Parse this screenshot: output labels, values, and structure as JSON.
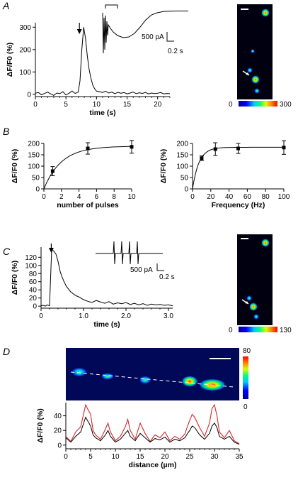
{
  "panel_labels": {
    "a": "A",
    "b": "B",
    "c": "C",
    "d": "D"
  },
  "colorbars": {
    "a": {
      "min": "0",
      "max": "300"
    },
    "c": {
      "min": "0",
      "max": "130"
    },
    "d": {
      "min": "0",
      "max": "80"
    }
  },
  "insets": {
    "a": {
      "current": "500 pA",
      "time": "0.2 s"
    },
    "c": {
      "current": "500 pA",
      "time": "0.2 s"
    }
  },
  "chart_data": [
    {
      "id": "A",
      "type": "line",
      "title": "",
      "xlabel": "time (s)",
      "ylabel": "ΔF/F0 (%)",
      "xlim": [
        0,
        22
      ],
      "ylim": [
        -10,
        320
      ],
      "xticks": [
        0,
        5,
        10,
        15,
        20
      ],
      "yticks": [
        0,
        100,
        200,
        300
      ],
      "x": [
        0,
        0.5,
        1,
        1.5,
        2,
        2.5,
        3,
        3.5,
        4,
        4.5,
        5,
        5.5,
        6,
        6.5,
        7,
        7.3,
        7.6,
        7.9,
        8.2,
        8.5,
        8.8,
        9.1,
        9.4,
        9.7,
        10,
        10.5,
        11,
        11.5,
        12,
        12.5,
        13,
        13.5,
        14,
        14.5,
        15,
        15.5,
        16,
        16.5,
        17,
        17.5,
        18,
        18.5,
        19,
        19.5,
        20,
        20.5,
        21,
        21.5,
        22
      ],
      "values": [
        5,
        8,
        -2,
        4,
        10,
        2,
        -5,
        6,
        3,
        12,
        -3,
        5,
        15,
        4,
        10,
        60,
        200,
        300,
        250,
        170,
        110,
        70,
        40,
        25,
        14,
        12,
        8,
        14,
        6,
        10,
        3,
        9,
        5,
        8,
        2,
        6,
        10,
        3,
        7,
        4,
        9,
        2,
        6,
        3,
        5,
        8,
        2,
        4,
        3
      ],
      "annotations": [
        "arrow at stimulus (~7 s)"
      ]
    },
    {
      "id": "B-left",
      "type": "scatter",
      "xlabel": "number of pulses",
      "ylabel": "ΔF/F0 (%)",
      "xlim": [
        0,
        10
      ],
      "ylim": [
        0,
        200
      ],
      "xticks": [
        0,
        2,
        4,
        6,
        8,
        10
      ],
      "yticks": [
        0,
        50,
        100,
        150,
        200
      ],
      "x": [
        1,
        5,
        10
      ],
      "values": [
        78,
        178,
        185
      ],
      "errors": [
        20,
        25,
        28
      ],
      "fit": "saturating exponential"
    },
    {
      "id": "B-right",
      "type": "scatter",
      "xlabel": "Frequency (Hz)",
      "ylabel": "ΔF/F0 (%)",
      "xlim": [
        0,
        100
      ],
      "ylim": [
        0,
        200
      ],
      "xticks": [
        0,
        20,
        40,
        60,
        80,
        100
      ],
      "yticks": [
        0,
        50,
        100,
        150,
        200
      ],
      "x": [
        10,
        25,
        50,
        100
      ],
      "values": [
        135,
        175,
        178,
        182
      ],
      "errors": [
        10,
        28,
        22,
        30
      ],
      "fit": "saturating exponential"
    },
    {
      "id": "C",
      "type": "line",
      "xlabel": "time (s)",
      "ylabel": "ΔF/F0 (%)",
      "xlim": [
        0,
        3.1
      ],
      "ylim": [
        -5,
        145
      ],
      "xticks": [
        0,
        1.0,
        2.0,
        3.0
      ],
      "yticks": [
        0,
        20,
        40,
        60,
        80,
        100,
        120
      ],
      "x": [
        0,
        0.05,
        0.1,
        0.15,
        0.2,
        0.25,
        0.3,
        0.35,
        0.4,
        0.45,
        0.5,
        0.55,
        0.6,
        0.7,
        0.8,
        0.9,
        1.0,
        1.1,
        1.2,
        1.3,
        1.4,
        1.5,
        1.6,
        1.7,
        1.8,
        1.9,
        2.0,
        2.1,
        2.2,
        2.3,
        2.4,
        2.5,
        2.6,
        2.7,
        2.8,
        2.9,
        3.0,
        3.1
      ],
      "values": [
        1,
        2,
        0,
        3,
        1,
        140,
        135,
        128,
        110,
        85,
        70,
        58,
        48,
        35,
        27,
        22,
        16,
        12,
        9,
        14,
        10,
        7,
        11,
        5,
        8,
        6,
        9,
        4,
        7,
        3,
        6,
        2,
        5,
        3,
        4,
        2,
        3,
        1
      ],
      "annotations": [
        "arrow at stimulus (~0.2 s)"
      ]
    },
    {
      "id": "D",
      "type": "line",
      "xlabel": "distance (µm)",
      "ylabel": "ΔF/F0 (%)",
      "xlim": [
        0,
        35
      ],
      "ylim": [
        -5,
        58
      ],
      "xticks": [
        0,
        5,
        10,
        15,
        20,
        25,
        30,
        35
      ],
      "yticks": [
        0,
        20,
        40
      ],
      "series": [
        {
          "color": "#d62728",
          "x": [
            0,
            1,
            2,
            3,
            3.5,
            4,
            4.5,
            5,
            5.5,
            6,
            7,
            8,
            8.5,
            9,
            10,
            11,
            12,
            12.5,
            13,
            14,
            15,
            16,
            17,
            18,
            19,
            20,
            21,
            22,
            23,
            24,
            25,
            25.5,
            26,
            27,
            28,
            29,
            29.5,
            30,
            30.5,
            31,
            32,
            33,
            34,
            35
          ],
          "values": [
            12,
            5,
            18,
            25,
            40,
            55,
            48,
            42,
            20,
            14,
            8,
            22,
            30,
            18,
            6,
            12,
            25,
            35,
            20,
            8,
            30,
            16,
            5,
            14,
            10,
            18,
            6,
            12,
            8,
            15,
            34,
            42,
            38,
            24,
            12,
            30,
            50,
            55,
            40,
            18,
            10,
            20,
            6,
            2
          ]
        },
        {
          "color": "#000000",
          "x": [
            0,
            1,
            2,
            3,
            3.5,
            4,
            4.5,
            5,
            5.5,
            6,
            7,
            8,
            8.5,
            9,
            10,
            11,
            12,
            12.5,
            13,
            14,
            15,
            16,
            17,
            18,
            19,
            20,
            21,
            22,
            23,
            24,
            25,
            25.5,
            26,
            27,
            28,
            29,
            29.5,
            30,
            30.5,
            31,
            32,
            33,
            34,
            35
          ],
          "values": [
            10,
            4,
            12,
            18,
            28,
            38,
            32,
            26,
            14,
            10,
            6,
            14,
            20,
            12,
            4,
            8,
            16,
            20,
            12,
            6,
            16,
            10,
            4,
            9,
            7,
            11,
            4,
            8,
            6,
            10,
            20,
            26,
            24,
            14,
            8,
            16,
            26,
            30,
            24,
            12,
            8,
            12,
            4,
            1
          ]
        }
      ]
    }
  ]
}
